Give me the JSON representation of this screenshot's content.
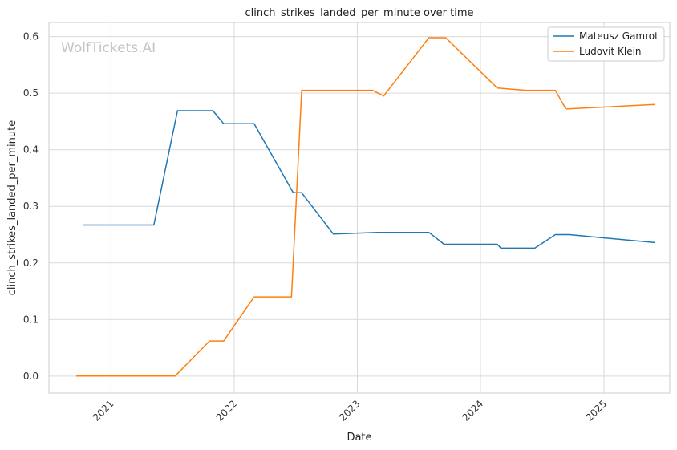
{
  "chart_data": {
    "type": "line",
    "title": "clinch_strikes_landed_per_minute over time",
    "xlabel": "Date",
    "ylabel": "clinch_strikes_landed_per_minute",
    "watermark": "WolfTickets.AI",
    "xlim": [
      "2020-07-01",
      "2025-07-15"
    ],
    "ylim": [
      -0.03,
      0.625
    ],
    "x_ticks": [
      "2021",
      "2022",
      "2023",
      "2024",
      "2025"
    ],
    "y_ticks": [
      "0.0",
      "0.1",
      "0.2",
      "0.3",
      "0.4",
      "0.5",
      "0.6"
    ],
    "grid": true,
    "legend_position": "top-right",
    "series": [
      {
        "name": "Mateusz Gamrot",
        "color": "#1f77b4",
        "points": [
          [
            "2020-10-10",
            0.267
          ],
          [
            "2021-05-08",
            0.267
          ],
          [
            "2021-07-17",
            0.469
          ],
          [
            "2021-10-30",
            0.469
          ],
          [
            "2021-12-01",
            0.446
          ],
          [
            "2022-03-01",
            0.446
          ],
          [
            "2022-06-25",
            0.324
          ],
          [
            "2022-07-20",
            0.324
          ],
          [
            "2022-10-22",
            0.251
          ],
          [
            "2023-03-01",
            0.254
          ],
          [
            "2023-08-01",
            0.254
          ],
          [
            "2023-09-15",
            0.233
          ],
          [
            "2024-02-20",
            0.233
          ],
          [
            "2024-03-01",
            0.226
          ],
          [
            "2024-06-10",
            0.226
          ],
          [
            "2024-08-10",
            0.25
          ],
          [
            "2024-09-20",
            0.25
          ],
          [
            "2025-06-01",
            0.236
          ]
        ]
      },
      {
        "name": "Ludovit Klein",
        "color": "#ff7f0e",
        "points": [
          [
            "2020-09-20",
            0.0
          ],
          [
            "2021-07-10",
            0.0
          ],
          [
            "2021-10-20",
            0.062
          ],
          [
            "2021-12-01",
            0.062
          ],
          [
            "2022-03-01",
            0.14
          ],
          [
            "2022-06-20",
            0.14
          ],
          [
            "2022-07-20",
            0.505
          ],
          [
            "2023-02-15",
            0.505
          ],
          [
            "2023-03-20",
            0.495
          ],
          [
            "2023-08-01",
            0.598
          ],
          [
            "2023-09-20",
            0.598
          ],
          [
            "2024-02-20",
            0.509
          ],
          [
            "2024-05-15",
            0.505
          ],
          [
            "2024-08-10",
            0.505
          ],
          [
            "2024-09-10",
            0.472
          ],
          [
            "2025-06-01",
            0.48
          ]
        ]
      }
    ]
  }
}
